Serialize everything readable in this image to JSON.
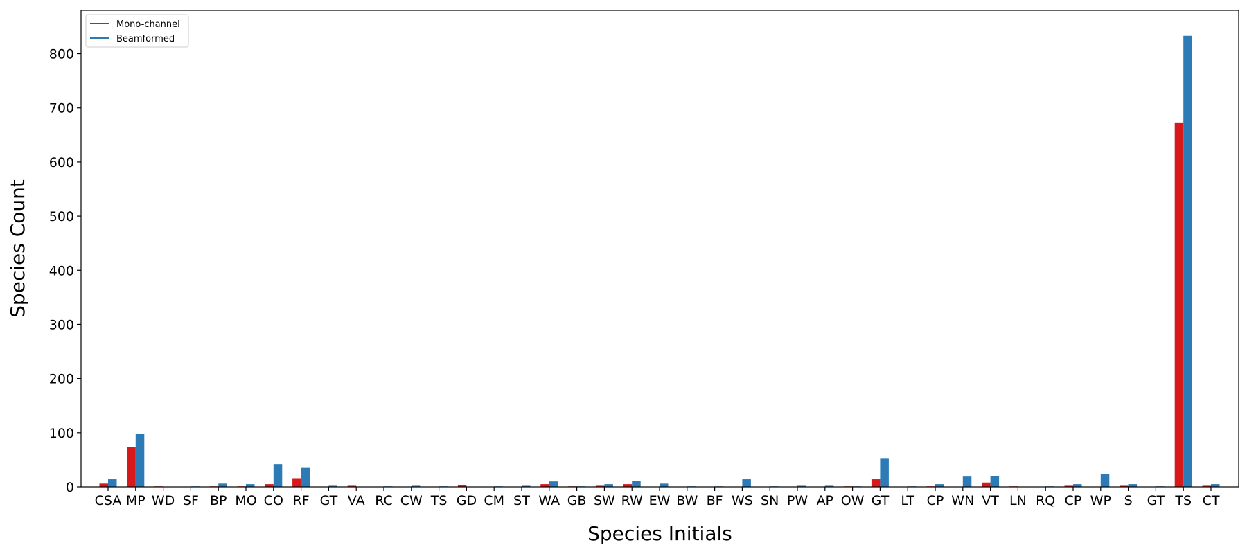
{
  "chart_data": {
    "type": "bar",
    "title": "",
    "xlabel": "Species Initials",
    "ylabel": "Species Count",
    "ylim": [
      0,
      880
    ],
    "yticks": [
      0,
      100,
      200,
      300,
      400,
      500,
      600,
      700,
      800
    ],
    "grid": false,
    "legend_position": "top-left",
    "categories": [
      "CSA",
      "MP",
      "WD",
      "SF",
      "BP",
      "MO",
      "CO",
      "RF",
      "GT",
      "VA",
      "RC",
      "CW",
      "TS",
      "GD",
      "CM",
      "ST",
      "WA",
      "GB",
      "SW",
      "RW",
      "EW",
      "BW",
      "BF",
      "WS",
      "SN",
      "PW",
      "AP",
      "OW",
      "GT",
      "LT",
      "CP",
      "WN",
      "VT",
      "LN",
      "RQ",
      "CP",
      "WP",
      "S",
      "GT",
      "TS",
      "CT"
    ],
    "series": [
      {
        "name": "Mono-channel",
        "color": "#d7191c",
        "values": [
          6,
          74,
          1,
          0,
          1,
          1,
          5,
          16,
          0,
          2,
          0,
          0,
          0,
          3,
          0,
          0,
          5,
          1,
          2,
          5,
          0,
          0,
          0,
          0,
          0,
          0,
          0,
          1,
          14,
          0,
          1,
          0,
          8,
          1,
          0,
          2,
          0,
          2,
          0,
          673,
          2
        ]
      },
      {
        "name": "Beamformed",
        "color": "#2c7bb6",
        "values": [
          14,
          98,
          0,
          1,
          6,
          5,
          42,
          35,
          2,
          0,
          1,
          2,
          1,
          0,
          1,
          2,
          10,
          1,
          5,
          11,
          6,
          1,
          1,
          14,
          1,
          2,
          2,
          1,
          52,
          1,
          5,
          19,
          20,
          0,
          1,
          5,
          23,
          5,
          1,
          833,
          5
        ]
      }
    ]
  }
}
